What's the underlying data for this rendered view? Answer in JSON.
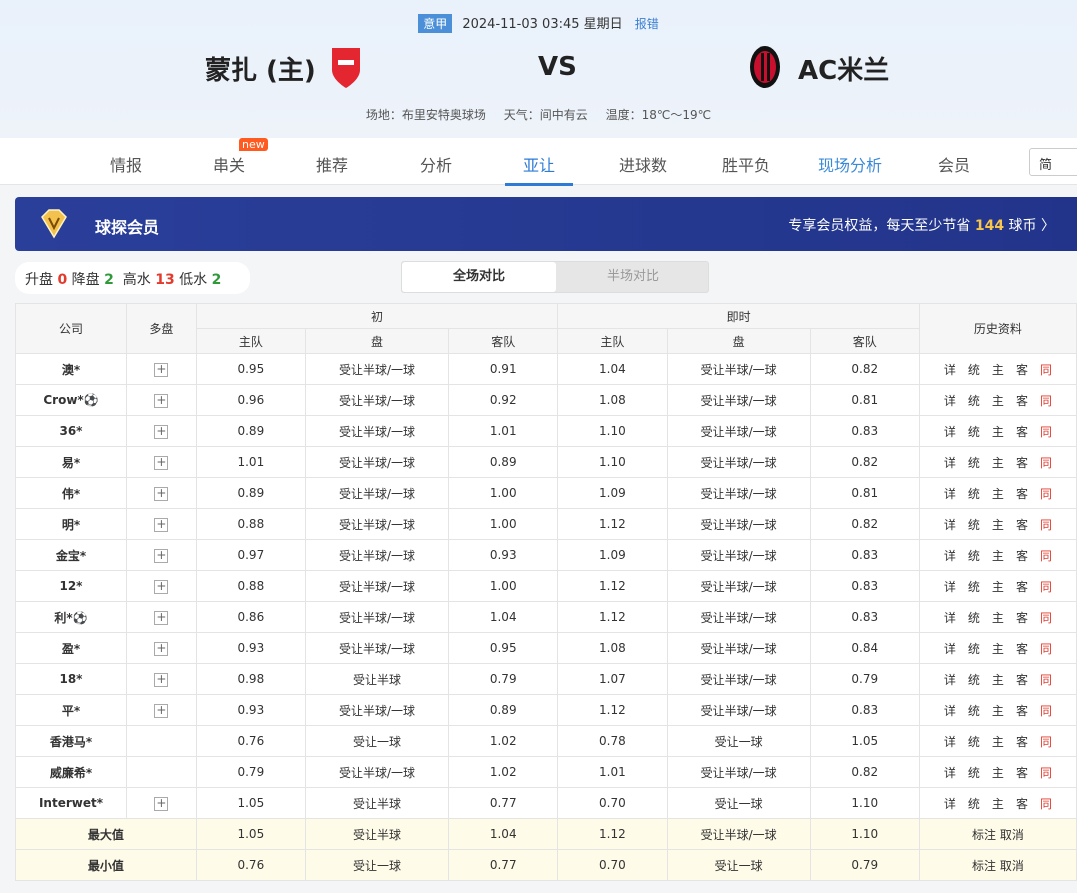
{
  "match": {
    "league": "意甲",
    "datetime": "2024-11-03 03:45 星期日",
    "report": "报错",
    "home": "蒙扎 (主)",
    "vs": "VS",
    "away": "AC米兰",
    "venue": "场地：布里安特奥球场",
    "weather": "天气：间中有云",
    "temp": "温度：18℃～19℃"
  },
  "nav": {
    "tabs": [
      "情报",
      "串关",
      "推荐",
      "分析",
      "亚让",
      "进球数",
      "胜平负",
      "现场分析",
      "会员"
    ],
    "new_badge": "new",
    "lang": "简"
  },
  "vip": {
    "title": "球探会员",
    "prefix": "专享会员权益，每天至少节省",
    "amount": "144",
    "suffix": "球币"
  },
  "stats": {
    "up_label": "升盘",
    "up": "0",
    "down_label": "降盘",
    "down": "2",
    "high_label": "高水",
    "high": "13",
    "low_label": "低水",
    "low": "2"
  },
  "segment": {
    "full": "全场对比",
    "half": "半场对比"
  },
  "table": {
    "headers": {
      "company": "公司",
      "multi": "多盘",
      "initial": "初",
      "live": "即时",
      "history": "历史资料",
      "home": "主队",
      "line": "盘",
      "away": "客队"
    },
    "history_links": [
      "详",
      "统",
      "主",
      "客",
      "同"
    ],
    "rows": [
      {
        "c": "澳*",
        "m": true,
        "v": [
          "0.95",
          "受让半球/一球",
          "0.91",
          "1.04",
          "受让半球/一球",
          "0.82"
        ]
      },
      {
        "c": "Crow*⚽",
        "m": true,
        "v": [
          "0.96",
          "受让半球/一球",
          "0.92",
          "1.08",
          "受让半球/一球",
          "0.81"
        ]
      },
      {
        "c": "36*",
        "m": true,
        "v": [
          "0.89",
          "受让半球/一球",
          "1.01",
          "1.10",
          "受让半球/一球",
          "0.83"
        ]
      },
      {
        "c": "易*",
        "m": true,
        "v": [
          "1.01",
          "受让半球/一球",
          "0.89",
          "1.10",
          "受让半球/一球",
          "0.82"
        ]
      },
      {
        "c": "伟*",
        "m": true,
        "v": [
          "0.89",
          "受让半球/一球",
          "1.00",
          "1.09",
          "受让半球/一球",
          "0.81"
        ]
      },
      {
        "c": "明*",
        "m": true,
        "v": [
          "0.88",
          "受让半球/一球",
          "1.00",
          "1.12",
          "受让半球/一球",
          "0.82"
        ]
      },
      {
        "c": "金宝*",
        "m": true,
        "v": [
          "0.97",
          "受让半球/一球",
          "0.93",
          "1.09",
          "受让半球/一球",
          "0.83"
        ]
      },
      {
        "c": "12*",
        "m": true,
        "v": [
          "0.88",
          "受让半球/一球",
          "1.00",
          "1.12",
          "受让半球/一球",
          "0.83"
        ]
      },
      {
        "c": "利*⚽",
        "m": true,
        "v": [
          "0.86",
          "受让半球/一球",
          "1.04",
          "1.12",
          "受让半球/一球",
          "0.83"
        ]
      },
      {
        "c": "盈*",
        "m": true,
        "v": [
          "0.93",
          "受让半球/一球",
          "0.95",
          "1.08",
          "受让半球/一球",
          "0.84"
        ]
      },
      {
        "c": "18*",
        "m": true,
        "v": [
          "0.98",
          "受让半球",
          "0.79",
          "1.07",
          "受让半球/一球",
          "0.79"
        ]
      },
      {
        "c": "平*",
        "m": true,
        "v": [
          "0.93",
          "受让半球/一球",
          "0.89",
          "1.12",
          "受让半球/一球",
          "0.83"
        ]
      },
      {
        "c": "香港马*",
        "m": false,
        "v": [
          "0.76",
          "受让一球",
          "1.02",
          "0.78",
          "受让一球",
          "1.05"
        ]
      },
      {
        "c": "威廉希*",
        "m": false,
        "v": [
          "0.79",
          "受让半球/一球",
          "1.02",
          "1.01",
          "受让半球/一球",
          "0.82"
        ]
      },
      {
        "c": "Interwet*",
        "m": true,
        "v": [
          "1.05",
          "受让半球",
          "0.77",
          "0.70",
          "受让一球",
          "1.10"
        ]
      }
    ],
    "summary": [
      {
        "label": "最大值",
        "v": [
          "1.05",
          "受让半球",
          "1.04",
          "1.12",
          "受让半球/一球",
          "1.10"
        ],
        "action": "标注 取消"
      },
      {
        "label": "最小值",
        "v": [
          "0.76",
          "受让一球",
          "0.77",
          "0.70",
          "受让一球",
          "0.79"
        ],
        "action": "标注 取消"
      }
    ]
  },
  "colors": {
    "accent": "#2e7bd6",
    "vip_bg": "#2a3f9a",
    "up": "#e23b2e",
    "down": "#2f9a3a"
  }
}
